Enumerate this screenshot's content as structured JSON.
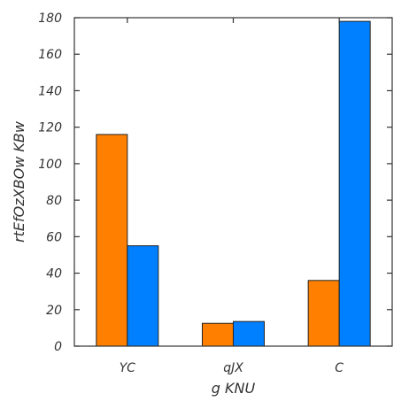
{
  "chart_data": {
    "type": "bar",
    "title": "",
    "xlabel": "g KNU",
    "ylabel": "rtEfOzXBOw KBw",
    "categories": [
      "YC",
      "qJX",
      "C"
    ],
    "series": [
      {
        "values": [
          116,
          12.5,
          36
        ],
        "color": "#ff8000"
      },
      {
        "values": [
          55,
          13.5,
          178
        ],
        "color": "#0080ff"
      }
    ],
    "ylim": [
      0,
      180
    ],
    "yticks": [
      0,
      20,
      40,
      60,
      80,
      100,
      120,
      140,
      160,
      180
    ],
    "grid": false,
    "legend": "none"
  }
}
